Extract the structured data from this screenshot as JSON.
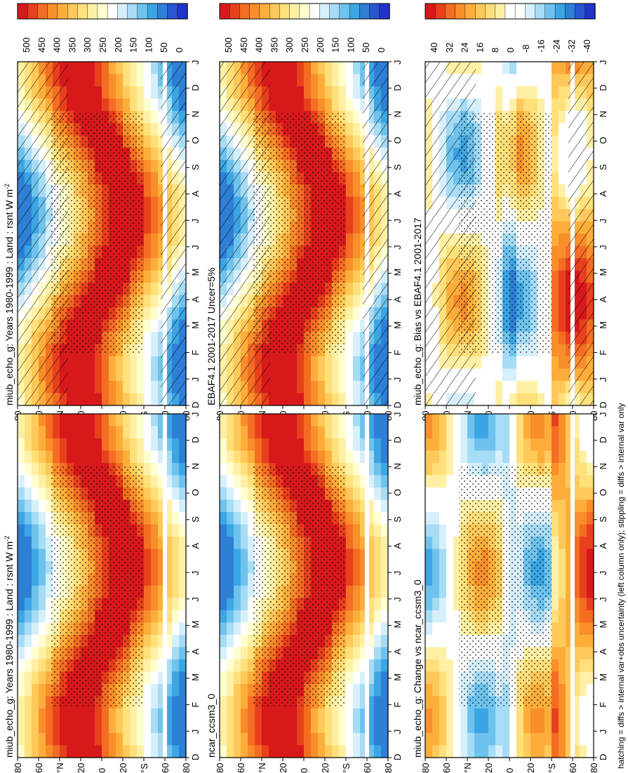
{
  "figure": {
    "caption": "hatching = diffs > internal var+obs uncertainty (left column only); stippling = diffs > internal var only"
  },
  "chart_data": [
    {
      "type": "heatmap",
      "id": "p_model_left",
      "title": "miub_echo_g: Years 1980-1999 : Land : rsnt W m",
      "title_sup": "-2",
      "scale": "abs",
      "hatch": true
    },
    {
      "type": "heatmap",
      "id": "p_model_right",
      "title": "miub_echo_g: Years 1980-1999 : Land : rsnt W m",
      "title_sup": "-2",
      "scale": "abs",
      "hatch": false
    },
    {
      "type": "heatmap",
      "id": "p_obs",
      "title": "EBAF4.1 2001-2017 Uncer=5%",
      "title_sup": "",
      "scale": "abs",
      "hatch": true
    },
    {
      "type": "heatmap",
      "id": "p_ref",
      "title": "ncar_ccsm3_0",
      "title_sup": "",
      "scale": "abs",
      "hatch": false
    },
    {
      "type": "heatmap",
      "id": "p_bias",
      "title": "miub_echo_g: Bias vs EBAF4.1 2001-2017",
      "title_sup": "",
      "scale": "diff",
      "hatch": true
    },
    {
      "type": "heatmap",
      "id": "p_change",
      "title": "miub_echo_g: Change vs ncar_ccsm3_0",
      "title_sup": "",
      "scale": "diff",
      "hatch": false
    }
  ],
  "axes": {
    "months": [
      "D",
      "J",
      "F",
      "M",
      "A",
      "M",
      "J",
      "J",
      "A",
      "S",
      "O",
      "N",
      "D",
      "J"
    ],
    "latitudes": [
      "80",
      "60",
      "°N",
      "20",
      "0",
      "20",
      "°S",
      "60",
      "80"
    ]
  },
  "colorbars": {
    "abs": {
      "labels": [
        "500",
        "450",
        "400",
        "350",
        "300",
        "250",
        "200",
        "150",
        "100",
        "50",
        "0"
      ],
      "colors": [
        "#d7191c",
        "#e8401c",
        "#f46d23",
        "#f98e2b",
        "#fdae3a",
        "#fec95a",
        "#ffe07a",
        "#fff0a6",
        "#ffffd0",
        "#ffffff",
        "#d6f0fb",
        "#a6dcf6",
        "#6ec3ee",
        "#3ca5e4",
        "#2e7fd6",
        "#2856d0",
        "#2233cc"
      ]
    },
    "diff": {
      "labels": [
        "40",
        "32",
        "24",
        "16",
        "8",
        "0",
        "-8",
        "-16",
        "-24",
        "-32",
        "-40"
      ],
      "colors": [
        "#d7191c",
        "#e8401c",
        "#f46d23",
        "#f98e2b",
        "#fdae3a",
        "#fec95a",
        "#ffe07a",
        "#fff0a6",
        "#ffffff",
        "#ffffff",
        "#d6f0fb",
        "#a6dcf6",
        "#6ec3ee",
        "#3ca5e4",
        "#2e7fd6",
        "#2856d0",
        "#2233cc"
      ]
    }
  }
}
